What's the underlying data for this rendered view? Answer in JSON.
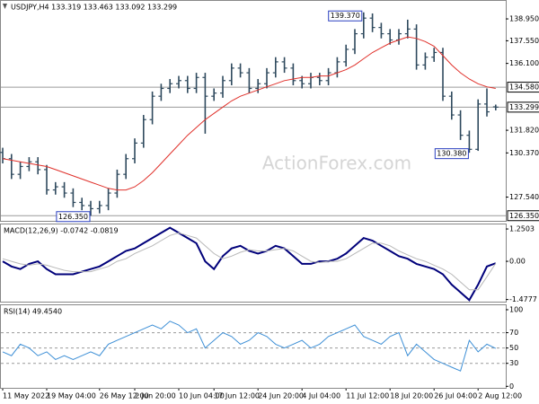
{
  "chart_data": [
    {
      "type": "ohlc",
      "title": "USDJPY,H4 133.319 133.463 133.092 133.299",
      "watermark": "ActionForex.com",
      "color": "#2f4a5e",
      "categories": [
        "11 May 2022",
        null,
        null,
        null,
        null,
        "19 May 04:00",
        null,
        null,
        null,
        null,
        null,
        "26 May 12:00",
        null,
        null,
        null,
        "2 Jun 20:00",
        null,
        null,
        null,
        null,
        "10 Jun 04:00",
        null,
        null,
        null,
        "17 Jun 12:00",
        null,
        null,
        null,
        null,
        "24 Jun 20:00",
        null,
        null,
        null,
        null,
        "4 Jul 04:00",
        null,
        null,
        null,
        null,
        "11 Jul 12:00",
        null,
        null,
        null,
        null,
        "18 Jul 20:00",
        null,
        null,
        null,
        null,
        "26 Jul 04:00",
        null,
        null,
        null,
        null,
        "2 Aug 12:00",
        null,
        null
      ],
      "open": [
        130.4,
        130.0,
        129.0,
        129.5,
        129.8,
        129.3,
        128.0,
        128.2,
        127.8,
        127.2,
        127.0,
        126.8,
        127.0,
        127.8,
        129.0,
        130.0,
        131.0,
        132.5,
        134.0,
        134.5,
        134.8,
        135.0,
        134.5,
        135.2,
        134.0,
        134.2,
        135.0,
        135.8,
        135.5,
        134.5,
        134.8,
        135.5,
        136.2,
        135.8,
        135.0,
        134.8,
        135.2,
        135.0,
        135.5,
        136.2,
        137.0,
        138.0,
        139.0,
        138.4,
        138.0,
        137.6,
        138.0,
        138.3,
        136.0,
        136.5,
        136.8,
        134.0,
        132.8,
        131.5,
        130.6,
        133.5,
        133.319
      ],
      "high": [
        130.7,
        130.3,
        129.8,
        130.1,
        130.1,
        129.6,
        128.5,
        128.5,
        128.1,
        127.5,
        127.3,
        127.3,
        128.1,
        129.3,
        130.3,
        131.3,
        132.8,
        134.3,
        134.8,
        135.1,
        135.3,
        135.3,
        135.5,
        135.5,
        134.5,
        135.3,
        136.1,
        136.1,
        135.8,
        135.1,
        135.8,
        136.5,
        136.5,
        136.1,
        135.3,
        135.5,
        135.5,
        135.8,
        136.5,
        137.3,
        138.3,
        139.37,
        139.3,
        138.7,
        138.3,
        138.3,
        138.9,
        138.6,
        136.8,
        137.1,
        137.1,
        134.3,
        133.1,
        131.8,
        133.8,
        134.5,
        133.463
      ],
      "low": [
        129.7,
        128.7,
        128.7,
        129.2,
        129.0,
        127.7,
        127.7,
        127.5,
        126.9,
        126.7,
        126.35,
        126.5,
        126.7,
        127.5,
        128.7,
        129.7,
        130.7,
        132.2,
        133.7,
        134.2,
        134.5,
        134.2,
        134.2,
        131.6,
        133.7,
        133.9,
        134.7,
        135.2,
        134.2,
        134.2,
        134.5,
        135.2,
        135.5,
        134.7,
        134.5,
        134.5,
        134.7,
        134.7,
        135.2,
        135.9,
        136.7,
        137.7,
        138.1,
        137.7,
        137.3,
        137.3,
        137.7,
        135.7,
        135.7,
        136.2,
        133.7,
        132.5,
        131.2,
        130.38,
        130.5,
        132.7,
        133.092
      ],
      "close": [
        130.0,
        129.0,
        129.5,
        129.8,
        129.3,
        128.0,
        128.2,
        127.8,
        127.2,
        127.0,
        126.8,
        127.0,
        127.8,
        129.0,
        130.0,
        131.0,
        132.5,
        134.0,
        134.5,
        134.8,
        135.0,
        134.5,
        135.2,
        134.0,
        134.2,
        135.0,
        135.8,
        135.5,
        134.5,
        134.8,
        135.5,
        136.2,
        135.8,
        135.0,
        134.8,
        135.2,
        135.0,
        135.5,
        136.2,
        137.0,
        138.0,
        139.0,
        138.4,
        138.0,
        137.6,
        138.0,
        138.3,
        136.0,
        136.5,
        136.8,
        134.0,
        132.8,
        131.5,
        130.6,
        133.5,
        133.0,
        133.299
      ],
      "ma": {
        "color": "#e0302a",
        "values": [
          130.0,
          129.9,
          129.8,
          129.7,
          129.6,
          129.5,
          129.3,
          129.1,
          128.9,
          128.7,
          128.5,
          128.3,
          128.1,
          128.0,
          128.0,
          128.2,
          128.6,
          129.1,
          129.7,
          130.3,
          130.9,
          131.5,
          132.0,
          132.5,
          132.9,
          133.3,
          133.7,
          134.0,
          134.2,
          134.4,
          134.6,
          134.8,
          135.0,
          135.1,
          135.2,
          135.2,
          135.3,
          135.3,
          135.5,
          135.7,
          136.0,
          136.4,
          136.8,
          137.1,
          137.4,
          137.6,
          137.8,
          137.7,
          137.5,
          137.2,
          136.6,
          136.0,
          135.5,
          135.1,
          134.8,
          134.6,
          134.5
        ]
      },
      "ylim": [
        126.02,
        140.16
      ],
      "yticks": [
        {
          "value": 138.95,
          "label": "138.950"
        },
        {
          "value": 137.55,
          "label": "137.550"
        },
        {
          "value": 136.1,
          "label": "136.100"
        },
        {
          "value": 131.82,
          "label": "131.820"
        },
        {
          "value": 130.37,
          "label": "130.370"
        },
        {
          "value": 127.54,
          "label": "127.540"
        }
      ],
      "levels": [
        {
          "value": 134.58,
          "label": "134.580"
        },
        {
          "value": 133.299,
          "label": "133.299"
        },
        {
          "value": 126.35,
          "label": "126.350"
        }
      ],
      "annotations": [
        {
          "value": 139.37,
          "label": "139.370"
        },
        {
          "value": 130.38,
          "label": "130.380"
        },
        {
          "value": 126.35,
          "label": "126.350"
        }
      ]
    },
    {
      "type": "line",
      "title": "MACD(12,26,9) -0.0742 -0.0819",
      "series": [
        {
          "color": "#00007a",
          "width": 2,
          "values": [
            0.0,
            -0.2,
            -0.3,
            -0.1,
            0.0,
            -0.3,
            -0.5,
            -0.5,
            -0.5,
            -0.4,
            -0.3,
            -0.2,
            0.0,
            0.2,
            0.4,
            0.5,
            0.7,
            0.9,
            1.1,
            1.3,
            1.1,
            0.9,
            0.7,
            0.0,
            -0.3,
            0.2,
            0.5,
            0.6,
            0.4,
            0.3,
            0.4,
            0.6,
            0.5,
            0.2,
            -0.1,
            -0.1,
            0.0,
            0.0,
            0.1,
            0.3,
            0.6,
            0.9,
            0.8,
            0.6,
            0.4,
            0.2,
            0.1,
            -0.1,
            -0.2,
            -0.3,
            -0.5,
            -0.9,
            -1.2,
            -1.5,
            -0.9,
            -0.2,
            -0.0742
          ]
        },
        {
          "color": "#b8b8b8",
          "width": 1,
          "values": [
            0.1,
            0.0,
            -0.1,
            -0.15,
            -0.1,
            -0.15,
            -0.25,
            -0.35,
            -0.4,
            -0.4,
            -0.4,
            -0.3,
            -0.2,
            0.0,
            0.1,
            0.3,
            0.45,
            0.6,
            0.8,
            1.0,
            1.1,
            1.0,
            0.9,
            0.6,
            0.3,
            0.1,
            0.2,
            0.35,
            0.45,
            0.4,
            0.4,
            0.45,
            0.5,
            0.4,
            0.2,
            0.0,
            -0.05,
            0.0,
            0.0,
            0.1,
            0.3,
            0.5,
            0.7,
            0.7,
            0.6,
            0.4,
            0.25,
            0.1,
            0.0,
            -0.15,
            -0.3,
            -0.5,
            -0.8,
            -1.1,
            -1.1,
            -0.6,
            -0.0819
          ]
        }
      ],
      "ylim": [
        -1.56,
        1.46
      ],
      "yticks": [
        1.2503,
        {
          "value": 0,
          "label": "0.00"
        },
        -1.4777
      ]
    },
    {
      "type": "line",
      "title": "RSI(14) 49.4540",
      "series": [
        {
          "color": "#3d8fd6",
          "width": 1,
          "values": [
            45,
            40,
            55,
            50,
            40,
            45,
            35,
            40,
            35,
            40,
            45,
            40,
            55,
            60,
            65,
            70,
            75,
            80,
            75,
            85,
            80,
            70,
            75,
            50,
            60,
            70,
            65,
            55,
            60,
            70,
            65,
            55,
            50,
            55,
            60,
            50,
            55,
            65,
            70,
            75,
            80,
            65,
            60,
            55,
            65,
            70,
            40,
            55,
            45,
            35,
            30,
            25,
            20,
            60,
            45,
            55,
            49.454
          ]
        }
      ],
      "ylim": [
        -2,
        107
      ],
      "yticks": [
        100,
        70,
        50,
        30,
        0
      ],
      "levels": [
        70,
        50,
        30
      ]
    }
  ]
}
